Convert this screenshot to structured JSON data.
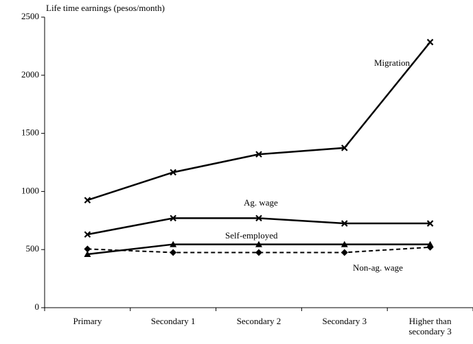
{
  "chart_data": {
    "type": "line",
    "y_label": "Life time earnings (pesos/month)",
    "categories": [
      "Primary",
      "Secondary 1",
      "Secondary 2",
      "Secondary 3",
      "Higher than secondary 3"
    ],
    "series": [
      {
        "name": "Migration",
        "color": "#000000",
        "marker": "x",
        "dash": false,
        "values": [
          925,
          1165,
          1320,
          1375,
          2285
        ]
      },
      {
        "name": "Ag. wage",
        "color": "#000000",
        "marker": "x",
        "dash": false,
        "values": [
          630,
          770,
          770,
          725,
          725
        ]
      },
      {
        "name": "Self-employed",
        "color": "#000000",
        "marker": "triangle",
        "dash": false,
        "values": [
          460,
          545,
          545,
          545,
          545
        ]
      },
      {
        "name": "Non-ag. wage",
        "color": "#000000",
        "marker": "diamond",
        "dash": true,
        "values": [
          505,
          475,
          475,
          475,
          520
        ]
      }
    ],
    "ylim": [
      0,
      2500
    ],
    "yticks": [
      0,
      500,
      1000,
      1500,
      2000,
      2500
    ],
    "grid": false
  }
}
